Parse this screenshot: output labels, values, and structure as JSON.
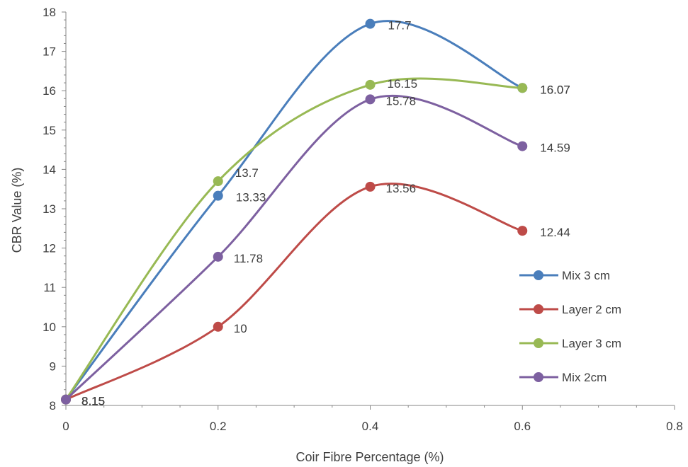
{
  "chart_data": {
    "type": "line",
    "title": "",
    "xlabel": "Coir Fibre Percentage (%)",
    "ylabel": "CBR Value (%)",
    "xlim": [
      0,
      0.8
    ],
    "ylim": [
      8,
      18
    ],
    "x_ticks": [
      "0",
      "0.2",
      "0.4",
      "0.6",
      "0.8"
    ],
    "y_ticks": [
      "8",
      "9",
      "10",
      "11",
      "12",
      "13",
      "14",
      "15",
      "16",
      "17",
      "18"
    ],
    "grid": false,
    "smooth": true,
    "legend_position": "right",
    "series": [
      {
        "name": "Mix 3 cm",
        "color": "#4a7ebb",
        "x": [
          0,
          0.2,
          0.4,
          0.6
        ],
        "y": [
          8.15,
          13.33,
          17.7,
          16.07
        ],
        "labels": [
          "8.15",
          "13.33",
          "17.7",
          "16.07"
        ]
      },
      {
        "name": "Layer 2 cm",
        "color": "#be4b48",
        "x": [
          0,
          0.2,
          0.4,
          0.6
        ],
        "y": [
          8.15,
          10,
          13.56,
          12.44
        ],
        "labels": [
          "8.15",
          "10",
          "13.56",
          "12.44"
        ]
      },
      {
        "name": "Layer 3 cm",
        "color": "#98b954",
        "x": [
          0,
          0.2,
          0.4,
          0.6
        ],
        "y": [
          8.15,
          13.7,
          16.15,
          16.07
        ],
        "labels": [
          "8.15",
          "13.7",
          "16.15",
          "16.07"
        ]
      },
      {
        "name": "Mix 2cm",
        "color": "#7d60a0",
        "x": [
          0,
          0.2,
          0.4,
          0.6
        ],
        "y": [
          8.15,
          11.78,
          15.78,
          14.59
        ],
        "labels": [
          "8.15",
          "11.78",
          "15.78",
          "14.59"
        ]
      }
    ]
  }
}
